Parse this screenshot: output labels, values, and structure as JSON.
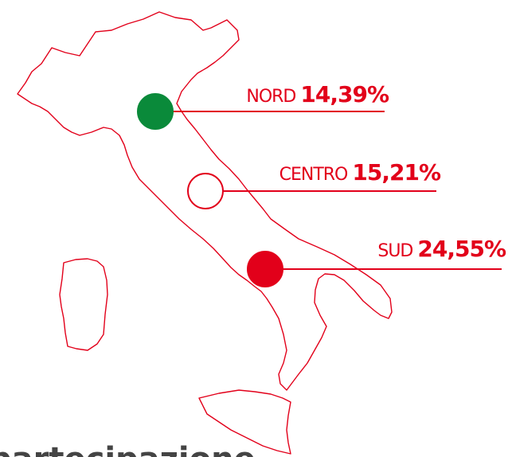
{
  "regions": [
    {
      "name": "NORD",
      "value": "14,39%",
      "color": "#0a8a3a"
    },
    {
      "name": "CENTRO",
      "value": "15,21%",
      "color": "#ffffff"
    },
    {
      "name": "SUD",
      "value": "24,55%",
      "color": "#e2001a"
    }
  ],
  "footer": {
    "text": "partecipazione"
  }
}
